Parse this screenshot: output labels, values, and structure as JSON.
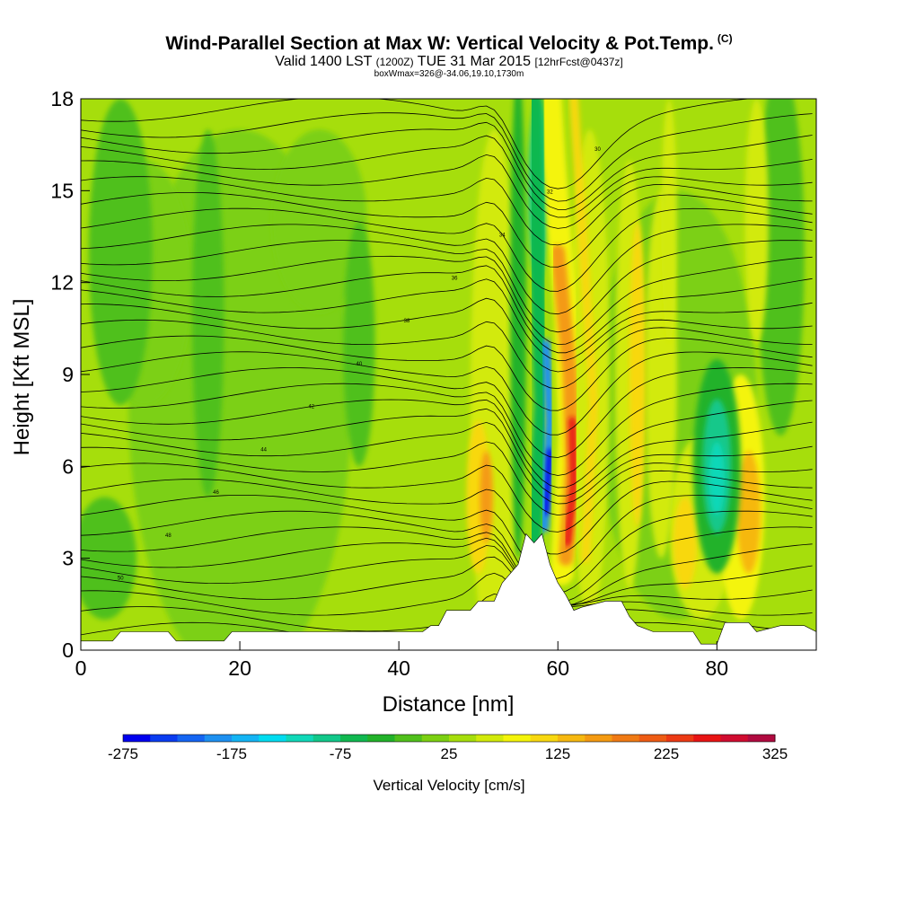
{
  "header": {
    "title": "Wind-Parallel Section at Max W: Vertical Velocity & Pot.Temp.",
    "title_mark": "(C)",
    "valid_prefix": "Valid 1400 LST",
    "valid_z": "(1200Z)",
    "valid_date": "TUE 31 Mar 2015",
    "forecast": "[12hrFcst@0437z]",
    "box_info": "boxWmax=326@-34.06,19.10,1730m"
  },
  "chart_data": {
    "type": "heatmap",
    "xlabel": "Distance [nm]",
    "ylabel": "Height [Kft MSL]",
    "xlim": [
      0,
      92.5
    ],
    "ylim": [
      0,
      18
    ],
    "x_ticks": [
      "0",
      "20",
      "40",
      "60",
      "80"
    ],
    "y_ticks": [
      "0",
      "3",
      "6",
      "9",
      "12",
      "15",
      "18"
    ],
    "colorbar": {
      "title": "Vertical Velocity [cm/s]",
      "labels": [
        "-275",
        "-175",
        "-75",
        "25",
        "125",
        "225",
        "325"
      ],
      "levels": [
        -275,
        -250,
        -225,
        -200,
        -175,
        -150,
        -125,
        -100,
        -75,
        -50,
        -25,
        0,
        25,
        50,
        75,
        100,
        125,
        150,
        175,
        200,
        225,
        250,
        275,
        300,
        325
      ],
      "colors": [
        "#0000ee",
        "#0a3cf0",
        "#1565f2",
        "#1e90f0",
        "#14b4f4",
        "#00dcf0",
        "#10d8b8",
        "#12c88a",
        "#10b850",
        "#22b22a",
        "#50c01c",
        "#7cd012",
        "#a6de0c",
        "#d2ea0a",
        "#f4f40a",
        "#f8d810",
        "#f6b810",
        "#f49a12",
        "#f07a14",
        "#ee5c14",
        "#ec3a14",
        "#e81414",
        "#d00c30",
        "#b00a40"
      ]
    },
    "field_notes": "background ~0 to 25 cm/s; strong updraft ~325 near x=61 nm, 4-9 kft; downdraft ~-275 near x=58.5 nm, 4-8 kft",
    "contour_labels": [
      "50",
      "48",
      "46",
      "44",
      "42",
      "40",
      "38",
      "36",
      "34",
      "32",
      "30"
    ],
    "terrain": [
      [
        0,
        0.3
      ],
      [
        4,
        0.3
      ],
      [
        5,
        0.6
      ],
      [
        11,
        0.6
      ],
      [
        12,
        0.3
      ],
      [
        18,
        0.3
      ],
      [
        19,
        0.6
      ],
      [
        43,
        0.6
      ],
      [
        44,
        0.8
      ],
      [
        45,
        0.8
      ],
      [
        46,
        1.3
      ],
      [
        49,
        1.3
      ],
      [
        50,
        1.6
      ],
      [
        52,
        1.6
      ],
      [
        53,
        2.2
      ],
      [
        55,
        2.8
      ],
      [
        56,
        3.8
      ],
      [
        57,
        3.5
      ],
      [
        58,
        3.8
      ],
      [
        59,
        2.8
      ],
      [
        60,
        2.2
      ],
      [
        61,
        1.8
      ],
      [
        62,
        1.3
      ],
      [
        63,
        1.4
      ],
      [
        66,
        1.6
      ],
      [
        68,
        1.6
      ],
      [
        69,
        1.1
      ],
      [
        70,
        0.8
      ],
      [
        72,
        0.6
      ],
      [
        77,
        0.6
      ],
      [
        78,
        0.2
      ],
      [
        80,
        0.2
      ],
      [
        81,
        0.9
      ],
      [
        84,
        0.9
      ],
      [
        85,
        0.6
      ],
      [
        88,
        0.8
      ],
      [
        91,
        0.8
      ],
      [
        92.5,
        0.6
      ]
    ]
  }
}
